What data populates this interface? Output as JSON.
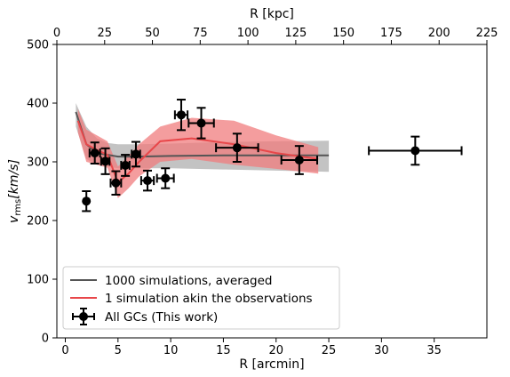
{
  "chart_data": {
    "type": "scatter",
    "x_bottom": {
      "label": "R [arcmin]",
      "range": [
        -0.8,
        40
      ],
      "ticks": [
        0,
        5,
        10,
        15,
        20,
        25,
        30,
        35
      ]
    },
    "x_top": {
      "label": "R [kpc]",
      "range": [
        0,
        225
      ],
      "ticks": [
        0,
        25,
        50,
        75,
        100,
        125,
        150,
        175,
        200,
        225
      ]
    },
    "y": {
      "label_main": "v",
      "label_sub": "rms",
      "label_unit": "[km/s]",
      "range": [
        0,
        500
      ],
      "ticks": [
        0,
        100,
        200,
        300,
        400,
        500
      ]
    },
    "grid": false,
    "legend_position": "lower-left",
    "series": [
      {
        "name": "1000 simulations, averaged",
        "kind": "line_with_band",
        "color": "#555555",
        "band_color": "#bdbdbd",
        "x": [
          1.0,
          2.0,
          3.0,
          4.0,
          5.0,
          7.0,
          10.0,
          15.0,
          20.0,
          25.0
        ],
        "y": [
          385,
          330,
          315,
          312,
          309,
          309,
          310,
          311,
          311,
          311
        ],
        "y_low": [
          360,
          305,
          295,
          292,
          289,
          289,
          289,
          287,
          285,
          283
        ],
        "y_high": [
          400,
          360,
          340,
          332,
          330,
          330,
          331,
          334,
          335,
          336
        ]
      },
      {
        "name": "1 simulation akin the observations",
        "kind": "line_with_band",
        "color": "#e8474a",
        "band_color": "#f07c7e",
        "x": [
          1.2,
          2.0,
          3.0,
          4.0,
          5.0,
          6.0,
          7.0,
          9.0,
          12.0,
          16.0,
          20.0,
          24.0
        ],
        "y": [
          370,
          330,
          320,
          312,
          265,
          280,
          300,
          335,
          340,
          330,
          315,
          305
        ],
        "y_low": [
          350,
          300,
          295,
          290,
          238,
          255,
          275,
          300,
          305,
          295,
          288,
          280
        ],
        "y_high": [
          390,
          355,
          345,
          335,
          292,
          310,
          330,
          360,
          375,
          370,
          345,
          325
        ]
      },
      {
        "name": "All GCs (This work)",
        "kind": "errorbar",
        "color": "#000000",
        "points": [
          {
            "x": 2.0,
            "y": 233,
            "yerr": 17,
            "xerr": 0
          },
          {
            "x": 2.8,
            "y": 315,
            "yerr": 18,
            "xerr": 0.5
          },
          {
            "x": 3.8,
            "y": 301,
            "yerr": 22,
            "xerr": 0.4
          },
          {
            "x": 4.8,
            "y": 264,
            "yerr": 20,
            "xerr": 0.5
          },
          {
            "x": 5.7,
            "y": 294,
            "yerr": 18,
            "xerr": 0.4
          },
          {
            "x": 6.7,
            "y": 313,
            "yerr": 21,
            "xerr": 0.4
          },
          {
            "x": 7.8,
            "y": 268,
            "yerr": 17,
            "xerr": 0.6
          },
          {
            "x": 9.5,
            "y": 272,
            "yerr": 17,
            "xerr": 0.8
          },
          {
            "x": 11.0,
            "y": 380,
            "yerr": 26,
            "xerr": 0.6
          },
          {
            "x": 12.9,
            "y": 366,
            "yerr": 26,
            "xerr": 1.2
          },
          {
            "x": 16.3,
            "y": 324,
            "yerr": 24,
            "xerr": 2.0
          },
          {
            "x": 22.2,
            "y": 303,
            "yerr": 24,
            "xerr": 1.7
          },
          {
            "x": 33.2,
            "y": 319,
            "yerr": 24,
            "xerr": 4.4
          }
        ]
      }
    ]
  }
}
